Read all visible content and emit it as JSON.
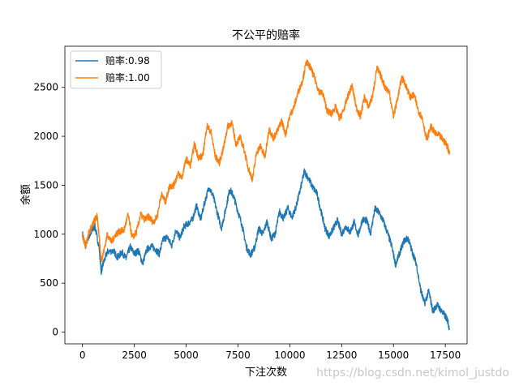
{
  "chart_data": {
    "type": "line",
    "title": "不公平的赔率",
    "xlabel": "下注次数",
    "ylabel": "余额",
    "xlim": [
      -850,
      18550
    ],
    "ylim": [
      -120,
      2920
    ],
    "xticks": [
      0,
      2500,
      5000,
      7500,
      10000,
      12500,
      15000,
      17500
    ],
    "yticks": [
      0,
      500,
      1000,
      1500,
      2000,
      2500
    ],
    "grid": false,
    "legend_position": "top-left",
    "series": [
      {
        "name": "赔率:0.98",
        "color": "#1f77b4",
        "points": [
          [
            0,
            1000
          ],
          [
            150,
            880
          ],
          [
            300,
            980
          ],
          [
            450,
            1030
          ],
          [
            600,
            1080
          ],
          [
            800,
            870
          ],
          [
            900,
            620
          ],
          [
            1000,
            700
          ],
          [
            1200,
            820
          ],
          [
            1500,
            830
          ],
          [
            1700,
            760
          ],
          [
            1900,
            820
          ],
          [
            2100,
            750
          ],
          [
            2300,
            870
          ],
          [
            2500,
            800
          ],
          [
            2700,
            830
          ],
          [
            2900,
            700
          ],
          [
            3100,
            840
          ],
          [
            3300,
            880
          ],
          [
            3500,
            850
          ],
          [
            3700,
            800
          ],
          [
            3900,
            950
          ],
          [
            4100,
            970
          ],
          [
            4300,
            880
          ],
          [
            4500,
            1040
          ],
          [
            4700,
            960
          ],
          [
            4900,
            1080
          ],
          [
            5100,
            1110
          ],
          [
            5300,
            1150
          ],
          [
            5500,
            1290
          ],
          [
            5700,
            1150
          ],
          [
            5900,
            1330
          ],
          [
            6100,
            1480
          ],
          [
            6300,
            1390
          ],
          [
            6500,
            1220
          ],
          [
            6700,
            1060
          ],
          [
            6900,
            1250
          ],
          [
            7100,
            1460
          ],
          [
            7300,
            1380
          ],
          [
            7500,
            1230
          ],
          [
            7700,
            1090
          ],
          [
            7900,
            870
          ],
          [
            8100,
            790
          ],
          [
            8300,
            860
          ],
          [
            8500,
            1060
          ],
          [
            8700,
            1000
          ],
          [
            8900,
            1130
          ],
          [
            9100,
            950
          ],
          [
            9300,
            1010
          ],
          [
            9500,
            1230
          ],
          [
            9700,
            1160
          ],
          [
            9900,
            1270
          ],
          [
            10100,
            1170
          ],
          [
            10300,
            1280
          ],
          [
            10500,
            1450
          ],
          [
            10700,
            1640
          ],
          [
            10900,
            1570
          ],
          [
            11100,
            1480
          ],
          [
            11300,
            1420
          ],
          [
            11500,
            1240
          ],
          [
            11700,
            1060
          ],
          [
            11900,
            980
          ],
          [
            12100,
            1060
          ],
          [
            12300,
            1140
          ],
          [
            12500,
            1000
          ],
          [
            12700,
            1080
          ],
          [
            12900,
            1020
          ],
          [
            13100,
            1120
          ],
          [
            13300,
            990
          ],
          [
            13500,
            1150
          ],
          [
            13700,
            1140
          ],
          [
            13900,
            1010
          ],
          [
            14100,
            1260
          ],
          [
            14300,
            1220
          ],
          [
            14500,
            1140
          ],
          [
            14700,
            1020
          ],
          [
            14900,
            890
          ],
          [
            15100,
            690
          ],
          [
            15300,
            810
          ],
          [
            15500,
            930
          ],
          [
            15700,
            960
          ],
          [
            15900,
            820
          ],
          [
            16100,
            700
          ],
          [
            16300,
            440
          ],
          [
            16500,
            290
          ],
          [
            16700,
            420
          ],
          [
            16900,
            210
          ],
          [
            17100,
            280
          ],
          [
            17300,
            220
          ],
          [
            17500,
            160
          ],
          [
            17600,
            130
          ],
          [
            17700,
            30
          ]
        ]
      },
      {
        "name": "赔率:1.00",
        "color": "#ff7f0e",
        "points": [
          [
            0,
            980
          ],
          [
            150,
            880
          ],
          [
            300,
            1010
          ],
          [
            450,
            1080
          ],
          [
            600,
            1150
          ],
          [
            700,
            1180
          ],
          [
            800,
            1000
          ],
          [
            900,
            730
          ],
          [
            1000,
            800
          ],
          [
            1200,
            1000
          ],
          [
            1400,
            920
          ],
          [
            1600,
            1000
          ],
          [
            1800,
            1030
          ],
          [
            2000,
            1040
          ],
          [
            2200,
            1200
          ],
          [
            2400,
            960
          ],
          [
            2600,
            1020
          ],
          [
            2800,
            1200
          ],
          [
            3000,
            1150
          ],
          [
            3200,
            1180
          ],
          [
            3400,
            1120
          ],
          [
            3600,
            1180
          ],
          [
            3800,
            1410
          ],
          [
            4000,
            1330
          ],
          [
            4200,
            1490
          ],
          [
            4400,
            1500
          ],
          [
            4600,
            1620
          ],
          [
            4800,
            1580
          ],
          [
            5000,
            1770
          ],
          [
            5200,
            1700
          ],
          [
            5400,
            1920
          ],
          [
            5600,
            1780
          ],
          [
            5800,
            1800
          ],
          [
            6000,
            2110
          ],
          [
            6200,
            2040
          ],
          [
            6400,
            1800
          ],
          [
            6600,
            1730
          ],
          [
            6800,
            1880
          ],
          [
            7000,
            2100
          ],
          [
            7200,
            2140
          ],
          [
            7400,
            1920
          ],
          [
            7600,
            1990
          ],
          [
            7800,
            1860
          ],
          [
            8000,
            1670
          ],
          [
            8200,
            1560
          ],
          [
            8400,
            1840
          ],
          [
            8600,
            1900
          ],
          [
            8800,
            1780
          ],
          [
            9000,
            2080
          ],
          [
            9200,
            1980
          ],
          [
            9400,
            2050
          ],
          [
            9600,
            2160
          ],
          [
            9800,
            2020
          ],
          [
            10000,
            2210
          ],
          [
            10200,
            2300
          ],
          [
            10400,
            2450
          ],
          [
            10600,
            2560
          ],
          [
            10800,
            2760
          ],
          [
            11000,
            2700
          ],
          [
            11200,
            2590
          ],
          [
            11400,
            2460
          ],
          [
            11600,
            2430
          ],
          [
            11800,
            2260
          ],
          [
            12000,
            2230
          ],
          [
            12200,
            2300
          ],
          [
            12400,
            2180
          ],
          [
            12600,
            2270
          ],
          [
            12800,
            2410
          ],
          [
            13000,
            2520
          ],
          [
            13200,
            2300
          ],
          [
            13400,
            2200
          ],
          [
            13600,
            2400
          ],
          [
            13800,
            2300
          ],
          [
            14000,
            2420
          ],
          [
            14200,
            2700
          ],
          [
            14400,
            2610
          ],
          [
            14600,
            2500
          ],
          [
            14800,
            2450
          ],
          [
            15000,
            2200
          ],
          [
            15200,
            2390
          ],
          [
            15400,
            2600
          ],
          [
            15600,
            2520
          ],
          [
            15800,
            2400
          ],
          [
            16000,
            2420
          ],
          [
            16200,
            2260
          ],
          [
            16400,
            2180
          ],
          [
            16600,
            1960
          ],
          [
            16800,
            2100
          ],
          [
            17000,
            2030
          ],
          [
            17200,
            2010
          ],
          [
            17400,
            1960
          ],
          [
            17600,
            1900
          ],
          [
            17700,
            1820
          ]
        ]
      }
    ]
  },
  "watermark": "https://blog.csdn.net/kimol_justdo"
}
